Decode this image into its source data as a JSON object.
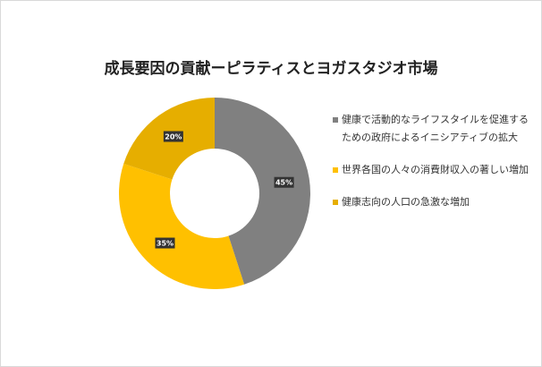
{
  "chart_data": {
    "type": "pie",
    "variant": "donut",
    "title": "成長要因の貢献ーピラティスとヨガスタジオ市場",
    "categories": [
      "健康で活動的なライフスタイルを促進するための政府によるイニシアティブの拡大",
      "世界各国の人々の消費財収入の著しい増加",
      "健康志向の人口の急激な増加"
    ],
    "values": [
      45,
      35,
      20
    ],
    "data_labels": [
      "45%",
      "35%",
      "20%"
    ],
    "colors": [
      "#808080",
      "#FFC000",
      "#E6AE00"
    ],
    "legend_position": "right"
  }
}
